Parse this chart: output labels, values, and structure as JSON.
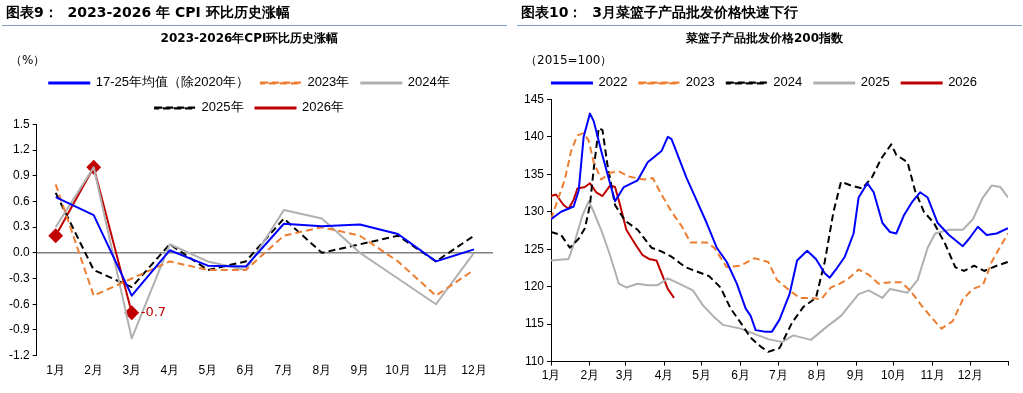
{
  "chart_data": [
    {
      "type": "line",
      "title": "图表9：  2023-2026 年 CPI 环比历史涨幅",
      "subtitle": "2023-2026年CPI环比历史涨幅",
      "ylabel": "（%）",
      "categories": [
        "1月",
        "2月",
        "3月",
        "4月",
        "5月",
        "6月",
        "7月",
        "8月",
        "9月",
        "10月",
        "11月",
        "12月"
      ],
      "series": [
        {
          "name": "17-25年均值（除2020年）",
          "color": "#0000ff",
          "line_style": "solid",
          "values": [
            0.65,
            0.44,
            -0.5,
            0.03,
            -0.15,
            -0.16,
            0.34,
            0.31,
            0.33,
            0.22,
            -0.1,
            0.04
          ]
        },
        {
          "name": "2023年",
          "color": "#ed7d31",
          "line_style": "dashed",
          "values": [
            0.8,
            -0.5,
            -0.3,
            -0.1,
            -0.2,
            -0.2,
            0.2,
            0.3,
            0.2,
            -0.1,
            -0.5,
            -0.2
          ]
        },
        {
          "name": "2024年",
          "color": "#b0b0b0",
          "line_style": "solid",
          "values": [
            0.3,
            1.0,
            -1.0,
            0.1,
            -0.1,
            -0.2,
            0.5,
            0.4,
            0.0,
            -0.3,
            -0.6,
            0.0
          ]
        },
        {
          "name": "2025年",
          "color": "#000000",
          "line_style": "dashed",
          "values": [
            0.7,
            -0.2,
            -0.4,
            0.1,
            -0.2,
            -0.1,
            0.4,
            0.0,
            0.1,
            0.2,
            -0.1,
            0.2
          ]
        },
        {
          "name": "2026年",
          "color": "#c00000",
          "line_style": "solid",
          "marker": "diamond",
          "values": [
            0.2,
            1.0,
            -0.7,
            null,
            null,
            null,
            null,
            null,
            null,
            null,
            null,
            null
          ]
        }
      ],
      "ylim": [
        -1.2,
        1.5
      ],
      "yticks": [
        -1.2,
        -0.9,
        -0.6,
        -0.3,
        {
          "value": 0,
          "label": "0.0"
        },
        0.3,
        0.6,
        0.9,
        1.2,
        1.5
      ],
      "ref_lines": [
        {
          "axis": "y",
          "value": 0,
          "color": "#404040"
        }
      ],
      "annotations": [
        {
          "text": "-0.7",
          "x": "3月",
          "y": -0.7
        }
      ],
      "legend": "top"
    },
    {
      "type": "line",
      "title": "图表10：  3月菜篮子产品批发价格快速下行",
      "subtitle": "菜篮子产品批发价格200指数",
      "ylabel": "（2015=100）",
      "series": [
        {
          "name": "2022",
          "color": "#0000ff",
          "line_style": "solid",
          "x": [
            "--01-01",
            "--01-09",
            "--01-19",
            "--01-23",
            "--01-27",
            "--02-01",
            "--02-04",
            "--02-10",
            "--02-17",
            "--02-21",
            "--02-28",
            "--03-11",
            "--03-19",
            "--03-30",
            "--04-04",
            "--04-07",
            "--04-13",
            "--04-19",
            "--04-26",
            "--05-05",
            "--05-13",
            "--05-21",
            "--05-29",
            "--06-05",
            "--06-09",
            "--06-13",
            "--06-20",
            "--06-26",
            "--07-02",
            "--07-10",
            "--07-16",
            "--07-24",
            "--07-31",
            "--08-07",
            "--08-11",
            "--08-16",
            "--08-23",
            "--08-30",
            "--09-03",
            "--09-10",
            "--09-15",
            "--09-22",
            "--09-28",
            "--10-03",
            "--10-09",
            "--10-16",
            "--10-22",
            "--10-28",
            "--11-05",
            "--11-14",
            "--11-25",
            "--11-30",
            "--12-07",
            "--12-14",
            "--12-22",
            "--12-31"
          ],
          "values": [
            129.0,
            130.0,
            130.7,
            132.8,
            140.0,
            143.1,
            142.1,
            138.1,
            133.8,
            131.4,
            133.3,
            134.2,
            136.6,
            138.1,
            140.0,
            139.7,
            137.1,
            134.5,
            131.9,
            128.5,
            125.2,
            123.3,
            120.4,
            117.1,
            116.1,
            114.2,
            114.0,
            114.0,
            115.6,
            119.0,
            123.5,
            124.8,
            123.7,
            121.8,
            121.2,
            122.3,
            124.0,
            127.1,
            131.9,
            133.8,
            132.6,
            128.5,
            127.3,
            127.1,
            129.5,
            131.4,
            132.6,
            131.9,
            128.5,
            126.9,
            125.4,
            126.4,
            128.0,
            126.9,
            127.1,
            127.8
          ]
        },
        {
          "name": "2023",
          "color": "#ed7d31",
          "line_style": "dashed",
          "x": [
            "--01-01",
            "--01-12",
            "--01-17",
            "--01-22",
            "--01-27",
            "--01-31",
            "--02-04",
            "--02-10",
            "--02-17",
            "--02-24",
            "--03-04",
            "--03-16",
            "--03-23",
            "--03-30",
            "--04-07",
            "--04-15",
            "--04-22",
            "--05-05",
            "--05-11",
            "--05-21",
            "--06-01",
            "--06-12",
            "--06-23",
            "--06-30",
            "--07-10",
            "--07-18",
            "--07-27",
            "--08-04",
            "--08-12",
            "--08-19",
            "--08-26",
            "--09-03",
            "--09-11",
            "--09-19",
            "--09-29",
            "--10-07",
            "--10-14",
            "--10-23",
            "--10-31",
            "--11-08",
            "--11-17",
            "--11-25",
            "--12-03",
            "--12-11",
            "--12-18",
            "--12-25",
            "--12-31"
          ],
          "values": [
            129.0,
            134.3,
            138.1,
            140.2,
            140.5,
            139.5,
            136.6,
            134.3,
            135.2,
            135.4,
            134.7,
            134.3,
            134.5,
            132.3,
            130.0,
            128.1,
            125.9,
            125.9,
            125.2,
            122.6,
            122.8,
            123.8,
            123.3,
            120.9,
            119.5,
            118.5,
            118.5,
            118.3,
            119.9,
            120.4,
            121.1,
            122.3,
            121.6,
            120.4,
            120.6,
            120.6,
            119.5,
            117.5,
            115.9,
            114.4,
            115.4,
            118.3,
            119.7,
            120.2,
            123.3,
            125.4,
            127.1
          ]
        },
        {
          "name": "2024",
          "color": "#000000",
          "line_style": "dashed",
          "x": [
            "--01-01",
            "--01-09",
            "--01-16",
            "--01-23",
            "--01-28",
            "--02-01",
            "--02-04",
            "--02-08",
            "--02-11",
            "--02-15",
            "--02-21",
            "--03-01",
            "--03-11",
            "--03-22",
            "--03-30",
            "--04-07",
            "--04-18",
            "--04-26",
            "--05-07",
            "--05-16",
            "--05-24",
            "--06-01",
            "--06-09",
            "--06-17",
            "--06-23",
            "--07-02",
            "--07-12",
            "--07-21",
            "--07-31",
            "--08-07",
            "--08-14",
            "--08-20",
            "--08-28",
            "--09-06",
            "--09-14",
            "--09-21",
            "--09-29",
            "--10-03",
            "--10-12",
            "--10-18",
            "--10-25",
            "--11-02",
            "--11-11",
            "--11-19",
            "--11-26",
            "--12-04",
            "--12-12",
            "--12-22",
            "--12-31"
          ],
          "values": [
            127.3,
            126.9,
            125.2,
            126.4,
            127.8,
            130.9,
            135.7,
            141.2,
            140.9,
            136.2,
            130.9,
            128.8,
            127.6,
            125.2,
            124.7,
            124.0,
            122.6,
            122.1,
            121.4,
            119.9,
            117.1,
            115.2,
            113.2,
            112.0,
            111.3,
            111.8,
            115.2,
            117.3,
            118.5,
            123.3,
            130.0,
            134.0,
            133.5,
            133.1,
            134.7,
            137.1,
            139.0,
            137.6,
            136.6,
            132.8,
            130.0,
            128.5,
            125.7,
            122.6,
            122.1,
            122.8,
            122.1,
            122.8,
            123.3
          ]
        },
        {
          "name": "2025",
          "color": "#b0b0b0",
          "line_style": "solid",
          "x": [
            "--01-01",
            "--01-15",
            "--01-20",
            "--01-26",
            "--01-31",
            "--02-04",
            "--02-11",
            "--02-17",
            "--02-24",
            "--03-02",
            "--03-11",
            "--03-19",
            "--03-27",
            "--04-04",
            "--04-13",
            "--04-24",
            "--05-02",
            "--05-10",
            "--05-18",
            "--06-01",
            "--06-12",
            "--06-23",
            "--07-04",
            "--07-13",
            "--07-27",
            "--08-09",
            "--08-20",
            "--09-03",
            "--09-11",
            "--09-22",
            "--09-28",
            "--10-12",
            "--10-20",
            "--10-28",
            "--11-03",
            "--11-14",
            "--11-25",
            "--12-03",
            "--12-11",
            "--12-18",
            "--12-25",
            "--12-31"
          ],
          "values": [
            123.5,
            123.7,
            126.1,
            129.5,
            131.4,
            130.0,
            127.1,
            124.2,
            120.4,
            119.9,
            120.4,
            120.2,
            120.2,
            121.1,
            120.4,
            119.5,
            117.5,
            116.1,
            114.9,
            114.4,
            113.7,
            113.0,
            112.6,
            113.5,
            112.9,
            114.7,
            116.1,
            119.0,
            119.5,
            118.5,
            119.7,
            119.2,
            120.9,
            125.2,
            127.1,
            127.6,
            127.6,
            129.0,
            131.9,
            133.5,
            133.3,
            131.9
          ]
        },
        {
          "name": "2026",
          "color": "#c00000",
          "line_style": "solid",
          "x": [
            "--01-01",
            "--01-05",
            "--01-11",
            "--01-15",
            "--01-19",
            "--01-22",
            "--01-28",
            "--02-01",
            "--02-06",
            "--02-11",
            "--02-17",
            "--02-21",
            "--02-25",
            "--03-02",
            "--03-09",
            "--03-15",
            "--03-20",
            "--03-26",
            "--03-30",
            "--04-04",
            "--04-09"
          ],
          "values": [
            132.1,
            132.3,
            130.9,
            130.4,
            131.6,
            133.1,
            133.3,
            133.8,
            132.6,
            132.1,
            133.5,
            133.3,
            130.9,
            127.6,
            125.7,
            124.2,
            123.7,
            123.5,
            121.8,
            119.7,
            118.5
          ]
        }
      ],
      "xlim": [
        "--01-01",
        "--12-31"
      ],
      "xticks": [
        {
          "value": "--01-01",
          "label": "1月"
        },
        {
          "value": "--02-01",
          "label": "2月"
        },
        {
          "value": "--03-01",
          "label": "3月"
        },
        {
          "value": "--04-01",
          "label": "4月"
        },
        {
          "value": "--05-01",
          "label": "5月"
        },
        {
          "value": "--06-01",
          "label": "6月"
        },
        {
          "value": "--07-01",
          "label": "7月"
        },
        {
          "value": "--08-01",
          "label": "8月"
        },
        {
          "value": "--09-01",
          "label": "9月"
        },
        {
          "value": "--10-01",
          "label": "10月"
        },
        {
          "value": "--11-01",
          "label": "11月"
        },
        {
          "value": "--12-01",
          "label": "12月"
        },
        {
          "value": "--12-31",
          "label": null
        }
      ],
      "ylim": [
        110,
        145
      ],
      "yticks": [
        110,
        115,
        120,
        125,
        130,
        135,
        140,
        145
      ],
      "legend": "top"
    }
  ]
}
